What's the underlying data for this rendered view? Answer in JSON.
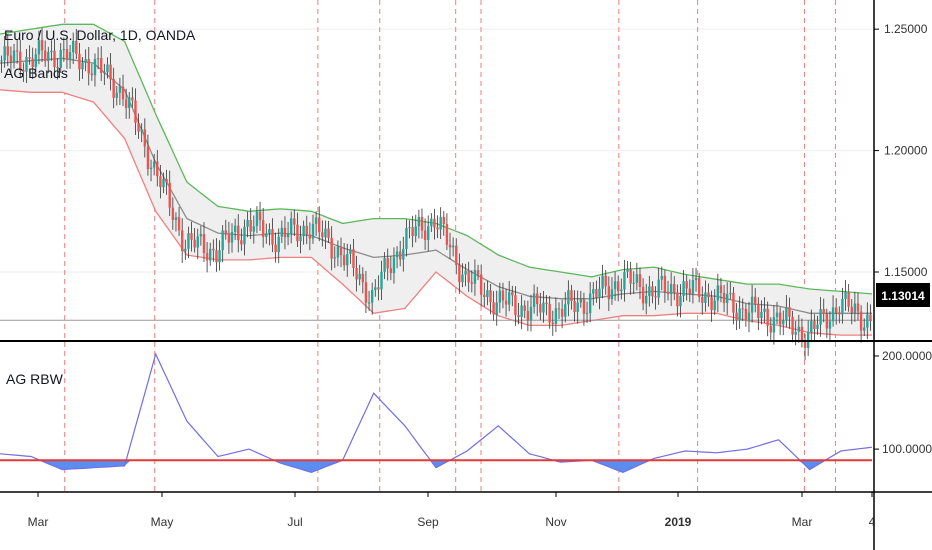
{
  "main_pane": {
    "title": "Euro / U.S. Dollar, 1D, OANDA",
    "indicator_label": "AG Bands",
    "last_price": "1.13014"
  },
  "sub_pane": {
    "indicator_label": "AG RBW"
  },
  "colors": {
    "up_candle": "#26a69a",
    "down_candle": "#ef5350",
    "upper_band": "#5cb85c",
    "lower_band": "#f08080",
    "mid_band": "#8c8c8c",
    "band_fill": "#efefef",
    "rbw_line": "#6f6fe6",
    "rbw_fill": "#5b8def",
    "rbw_threshold": "#e53935",
    "vline": "#ef7f7f",
    "price_box": "#000000"
  },
  "chart_data": [
    {
      "type": "line",
      "title": "Euro / U.S. Dollar, 1D, OANDA",
      "xlabel": "",
      "ylabel": "",
      "x_ticks": [
        "Mar",
        "May",
        "Jul",
        "Sep",
        "Nov",
        "2019",
        "Mar",
        "4"
      ],
      "y_ticks": [
        "1.25000",
        "1.20000",
        "1.15000"
      ],
      "ylim": [
        1.122,
        1.262
      ],
      "grid": true,
      "legend": "none",
      "series": [
        {
          "name": "AG Bands",
          "x": [
            0,
            10,
            20,
            30,
            40,
            50,
            60,
            70,
            80,
            90,
            100,
            110,
            120,
            130,
            140,
            150,
            160,
            170,
            180,
            190,
            200,
            210,
            220,
            230,
            240,
            250,
            260,
            270,
            280
          ],
          "upper": [
            1.248,
            1.25,
            1.252,
            1.252,
            1.245,
            1.215,
            1.187,
            1.177,
            1.175,
            1.176,
            1.175,
            1.17,
            1.172,
            1.172,
            1.17,
            1.165,
            1.157,
            1.152,
            1.15,
            1.148,
            1.151,
            1.152,
            1.149,
            1.147,
            1.145,
            1.145,
            1.143,
            1.142,
            1.141
          ],
          "mid": [
            1.236,
            1.237,
            1.238,
            1.236,
            1.225,
            1.195,
            1.172,
            1.166,
            1.165,
            1.166,
            1.165,
            1.16,
            1.156,
            1.157,
            1.159,
            1.151,
            1.144,
            1.14,
            1.139,
            1.139,
            1.141,
            1.142,
            1.141,
            1.14,
            1.137,
            1.136,
            1.133,
            1.133,
            1.133
          ],
          "lower": [
            1.225,
            1.224,
            1.224,
            1.22,
            1.205,
            1.175,
            1.157,
            1.155,
            1.155,
            1.156,
            1.156,
            1.145,
            1.133,
            1.135,
            1.15,
            1.14,
            1.132,
            1.128,
            1.128,
            1.13,
            1.132,
            1.132,
            1.133,
            1.133,
            1.13,
            1.128,
            1.125,
            1.124,
            1.124
          ],
          "close": [
            1.237,
            1.238,
            1.24,
            1.236,
            1.224,
            1.193,
            1.162,
            1.159,
            1.17,
            1.164,
            1.169,
            1.158,
            1.14,
            1.163,
            1.172,
            1.148,
            1.138,
            1.135,
            1.134,
            1.139,
            1.147,
            1.142,
            1.143,
            1.14,
            1.134,
            1.131,
            1.124,
            1.137,
            1.13
          ]
        }
      ]
    },
    {
      "type": "area",
      "title": "AG RBW",
      "y_ticks": [
        "200.0000",
        "100.0000"
      ],
      "ylim": [
        55,
        215
      ],
      "threshold": 88,
      "series": [
        {
          "name": "AG RBW",
          "x": [
            0,
            10,
            20,
            30,
            40,
            50,
            60,
            70,
            80,
            90,
            100,
            110,
            120,
            130,
            140,
            150,
            160,
            170,
            180,
            190,
            200,
            210,
            220,
            230,
            240,
            250,
            260,
            270,
            280
          ],
          "values": [
            95,
            92,
            78,
            80,
            82,
            202,
            130,
            92,
            100,
            85,
            75,
            88,
            160,
            125,
            80,
            98,
            125,
            95,
            86,
            88,
            75,
            90,
            98,
            96,
            100,
            110,
            78,
            98,
            102
          ]
        }
      ]
    }
  ]
}
